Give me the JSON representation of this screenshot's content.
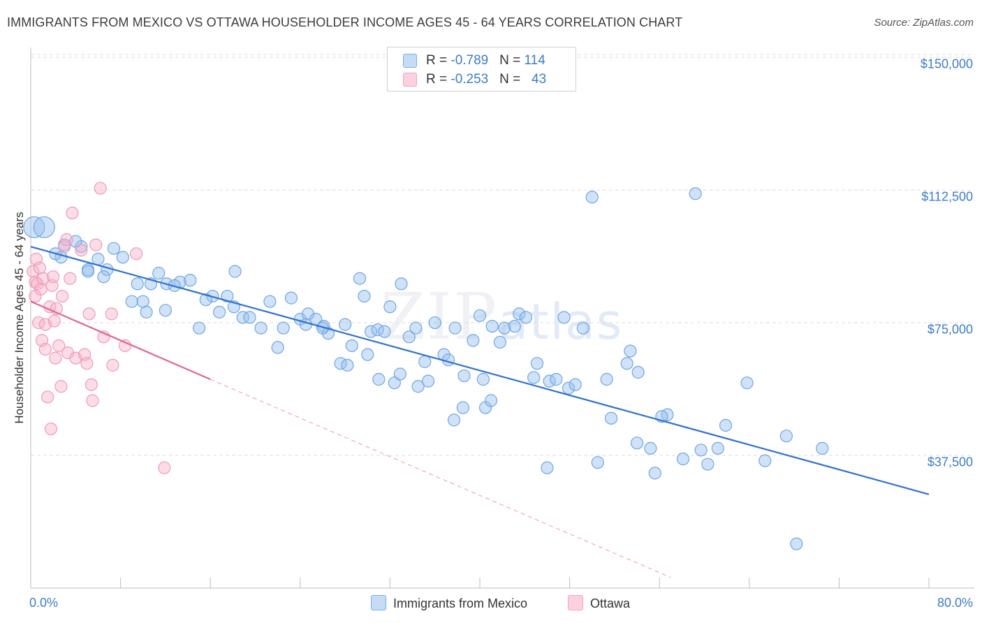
{
  "title": "IMMIGRANTS FROM MEXICO VS OTTAWA HOUSEHOLDER INCOME AGES 45 - 64 YEARS CORRELATION CHART",
  "source": "Source: ZipAtlas.com",
  "watermark": {
    "zip": "ZIP",
    "atlas": "atlas"
  },
  "colors": {
    "mexico": "#7aaee8",
    "mexico_line": "#2f72cf",
    "ottawa": "#f4a3bd",
    "ottawa_line": "#e06690",
    "tick_text": "#3d7cc9"
  },
  "legend": {
    "rows": [
      {
        "r_label": "R = ",
        "r_value": "-0.789",
        "n_label": "N = ",
        "n_value": "114"
      },
      {
        "r_label": "R = ",
        "r_value": "-0.253",
        "n_label": "N = ",
        "n_value": "43"
      }
    ]
  },
  "chart_data": {
    "type": "scatter",
    "title": "IMMIGRANTS FROM MEXICO VS OTTAWA HOUSEHOLDER INCOME AGES 45 - 64 YEARS CORRELATION CHART",
    "xlabel": "",
    "ylabel": "Householder Income Ages 45 - 64 years",
    "xlim": [
      0,
      80
    ],
    "ylim": [
      0,
      152000
    ],
    "x_tick_labels": [
      "0.0%",
      "80.0%"
    ],
    "y_ticks": [
      37500,
      75000,
      112500,
      150000
    ],
    "y_tick_labels": [
      "$37,500",
      "$75,000",
      "$112,500",
      "$150,000"
    ],
    "grid": true,
    "legend_position": "top-center",
    "series": [
      {
        "name": "Immigrants from Mexico",
        "trend": {
          "x": [
            0,
            80
          ],
          "y": [
            96500,
            26500
          ]
        },
        "points": [
          [
            0.3,
            102000
          ],
          [
            1.2,
            102000
          ],
          [
            3.0,
            97000
          ],
          [
            4.5,
            96500
          ],
          [
            2.7,
            93500
          ],
          [
            7.4,
            96000
          ],
          [
            8.2,
            93500
          ],
          [
            5.1,
            90000
          ],
          [
            5.1,
            89500
          ],
          [
            6.8,
            90000
          ],
          [
            6.0,
            93000
          ],
          [
            9.5,
            86000
          ],
          [
            10.7,
            86000
          ],
          [
            11.4,
            89000
          ],
          [
            12.1,
            86000
          ],
          [
            13.3,
            86500
          ],
          [
            12.8,
            85500
          ],
          [
            14.2,
            87000
          ],
          [
            16.2,
            82500
          ],
          [
            15.6,
            81500
          ],
          [
            9.0,
            81000
          ],
          [
            10.0,
            81000
          ],
          [
            10.3,
            78000
          ],
          [
            17.5,
            82500
          ],
          [
            18.1,
            79500
          ],
          [
            16.8,
            78000
          ],
          [
            18.9,
            76500
          ],
          [
            19.5,
            76500
          ],
          [
            20.5,
            73500
          ],
          [
            21.3,
            81000
          ],
          [
            22.5,
            73500
          ],
          [
            23.2,
            82000
          ],
          [
            24.0,
            76000
          ],
          [
            24.7,
            77500
          ],
          [
            25.4,
            76000
          ],
          [
            26.1,
            74000
          ],
          [
            26.5,
            72000
          ],
          [
            22.0,
            68000
          ],
          [
            18.2,
            89500
          ],
          [
            27.6,
            63500
          ],
          [
            28.2,
            63000
          ],
          [
            28.6,
            68500
          ],
          [
            29.3,
            87500
          ],
          [
            29.7,
            82500
          ],
          [
            30.3,
            72500
          ],
          [
            30.9,
            73000
          ],
          [
            31.5,
            72500
          ],
          [
            32.0,
            79500
          ],
          [
            32.4,
            58000
          ],
          [
            32.9,
            60500
          ],
          [
            33.7,
            71000
          ],
          [
            34.3,
            73500
          ],
          [
            35.1,
            64000
          ],
          [
            35.4,
            58500
          ],
          [
            36.0,
            75000
          ],
          [
            36.8,
            66000
          ],
          [
            37.2,
            64500
          ],
          [
            37.8,
            73500
          ],
          [
            38.6,
            60000
          ],
          [
            39.4,
            70000
          ],
          [
            40.0,
            77000
          ],
          [
            40.3,
            59000
          ],
          [
            41.1,
            74000
          ],
          [
            41.8,
            69500
          ],
          [
            37.7,
            47500
          ],
          [
            38.5,
            51000
          ],
          [
            40.5,
            51000
          ],
          [
            41.0,
            53000
          ],
          [
            42.2,
            73500
          ],
          [
            43.1,
            74000
          ],
          [
            43.5,
            77500
          ],
          [
            44.1,
            76500
          ],
          [
            44.8,
            59500
          ],
          [
            45.1,
            63500
          ],
          [
            46.2,
            58500
          ],
          [
            46.8,
            59000
          ],
          [
            47.5,
            76500
          ],
          [
            47.9,
            56500
          ],
          [
            48.5,
            57500
          ],
          [
            49.2,
            73500
          ],
          [
            50.0,
            110500
          ],
          [
            51.3,
            59000
          ],
          [
            51.7,
            48000
          ],
          [
            53.1,
            63500
          ],
          [
            53.4,
            67000
          ],
          [
            54.1,
            61000
          ],
          [
            54.0,
            41000
          ],
          [
            55.2,
            39500
          ],
          [
            55.6,
            32500
          ],
          [
            56.7,
            49000
          ],
          [
            56.2,
            48500
          ],
          [
            58.1,
            36500
          ],
          [
            59.2,
            111500
          ],
          [
            59.7,
            39000
          ],
          [
            60.3,
            35000
          ],
          [
            61.2,
            39500
          ],
          [
            61.9,
            46000
          ],
          [
            63.8,
            58000
          ],
          [
            65.4,
            36000
          ],
          [
            67.3,
            43000
          ],
          [
            70.5,
            39500
          ],
          [
            68.2,
            12500
          ],
          [
            46.0,
            34000
          ],
          [
            50.5,
            35500
          ],
          [
            31.0,
            59000
          ],
          [
            34.5,
            57000
          ],
          [
            30.0,
            66000
          ],
          [
            33.0,
            86000
          ],
          [
            28.0,
            74500
          ],
          [
            26.0,
            73500
          ],
          [
            24.5,
            74500
          ],
          [
            15.0,
            73500
          ],
          [
            12.0,
            78500
          ],
          [
            6.5,
            88000
          ],
          [
            2.2,
            94500
          ],
          [
            4.0,
            98000
          ]
        ]
      },
      {
        "name": "Ottawa",
        "trend": {
          "x": [
            0,
            16
          ],
          "y": [
            81000,
            59000
          ]
        },
        "trend_extended": {
          "x": [
            16,
            57
          ],
          "y": [
            59000,
            3000
          ]
        },
        "points": [
          [
            0.2,
            89500
          ],
          [
            0.4,
            86500
          ],
          [
            0.4,
            82500
          ],
          [
            0.5,
            93000
          ],
          [
            0.6,
            86000
          ],
          [
            0.7,
            75000
          ],
          [
            0.8,
            90500
          ],
          [
            0.9,
            84500
          ],
          [
            1.0,
            70000
          ],
          [
            1.1,
            87500
          ],
          [
            1.3,
            67500
          ],
          [
            1.3,
            74500
          ],
          [
            1.5,
            54000
          ],
          [
            1.7,
            79500
          ],
          [
            1.8,
            45000
          ],
          [
            1.9,
            85500
          ],
          [
            2.0,
            88000
          ],
          [
            2.1,
            75500
          ],
          [
            2.2,
            65000
          ],
          [
            2.3,
            79000
          ],
          [
            2.5,
            68500
          ],
          [
            2.7,
            57000
          ],
          [
            2.8,
            82500
          ],
          [
            3.0,
            96500
          ],
          [
            3.2,
            98500
          ],
          [
            3.3,
            66500
          ],
          [
            3.5,
            87500
          ],
          [
            3.7,
            106000
          ],
          [
            4.0,
            65000
          ],
          [
            4.5,
            95500
          ],
          [
            4.8,
            66000
          ],
          [
            5.0,
            63500
          ],
          [
            5.2,
            77500
          ],
          [
            5.4,
            57500
          ],
          [
            5.5,
            53000
          ],
          [
            5.8,
            97000
          ],
          [
            6.2,
            113000
          ],
          [
            6.5,
            71000
          ],
          [
            7.2,
            77500
          ],
          [
            7.3,
            63000
          ],
          [
            8.4,
            68500
          ],
          [
            9.4,
            94500
          ],
          [
            11.9,
            34000
          ]
        ]
      }
    ]
  },
  "bottom_legend": [
    "Immigrants from Mexico",
    "Ottawa"
  ]
}
